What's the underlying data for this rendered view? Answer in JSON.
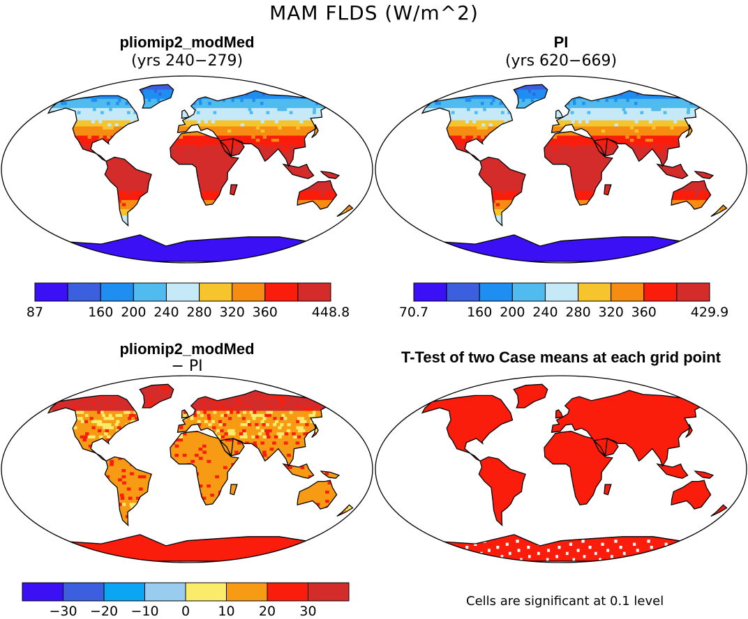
{
  "title": "MAM FLDS (W/m^2)",
  "panels": [
    {
      "title": "pliomip2_modMed",
      "subtitle": "(yrs 240−279)"
    },
    {
      "title": "PI",
      "subtitle": "(yrs 620−669)"
    },
    {
      "title": "pliomip2_modMed",
      "subtitle": "− PI"
    },
    {
      "title": "T-Test of two Case means at each grid point",
      "subtitle": ""
    }
  ],
  "colorbars": [
    {
      "name": "pliomip2_modMed",
      "colors": [
        "#3b10f5",
        "#3c5fe0",
        "#1e8ef2",
        "#50bbee",
        "#c6e9f7",
        "#f6c42d",
        "#f78c12",
        "#fb1d0c",
        "#d42b2b"
      ],
      "labels": [
        "87",
        "160",
        "200",
        "240",
        "280",
        "320",
        "360",
        "448.8"
      ],
      "label_boundaries": [
        0,
        2,
        3,
        4,
        5,
        6,
        7,
        9
      ]
    },
    {
      "name": "PI",
      "colors": [
        "#3b10f5",
        "#3c5fe0",
        "#1e8ef2",
        "#50bbee",
        "#c6e9f7",
        "#f6c42d",
        "#f78c12",
        "#fb1d0c",
        "#d42b2b"
      ],
      "labels": [
        "70.7",
        "160",
        "200",
        "240",
        "280",
        "320",
        "360",
        "429.9"
      ],
      "label_boundaries": [
        0,
        2,
        3,
        4,
        5,
        6,
        7,
        9
      ]
    },
    {
      "name": "difference",
      "colors": [
        "#3b10f5",
        "#3c5fe0",
        "#0aa6f3",
        "#99ccef",
        "#fbeb6a",
        "#f79b14",
        "#fb1d0c",
        "#d42b2b"
      ],
      "labels": [
        "−30",
        "−20",
        "−10",
        "0",
        "10",
        "20",
        "30"
      ],
      "label_boundaries": [
        1,
        2,
        3,
        4,
        5,
        6,
        7
      ]
    }
  ],
  "significance_note": "Cells are significant at 0.1 level"
}
